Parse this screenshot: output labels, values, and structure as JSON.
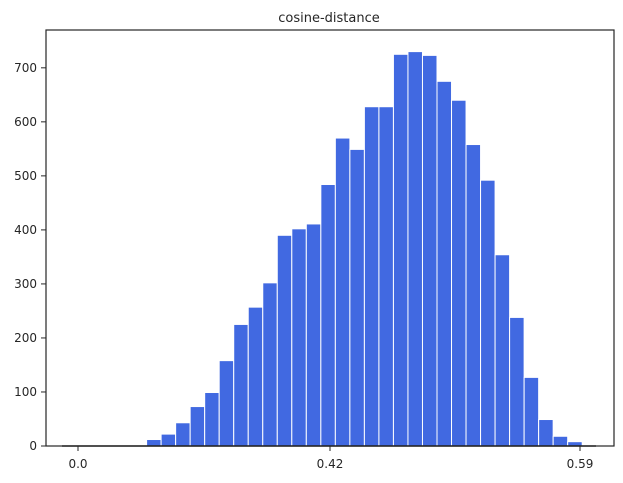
{
  "chart_data": {
    "type": "bar",
    "title": "cosine-distance",
    "xlabel": "",
    "ylabel": "",
    "xticks": [
      "0.0",
      "0.42",
      "0.59"
    ],
    "yticks": [
      "0",
      "100",
      "200",
      "300",
      "400",
      "500",
      "600",
      "700"
    ],
    "ylim": [
      0,
      770
    ],
    "grid": false,
    "bar_color": "#4169e1",
    "edge_color": "#ffffff",
    "values": [
      12,
      22,
      43,
      73,
      99,
      158,
      225,
      257,
      302,
      390,
      402,
      411,
      484,
      570,
      549,
      628,
      628,
      725,
      730,
      723,
      675,
      640,
      558,
      492,
      354,
      238,
      127,
      49,
      18,
      8
    ]
  }
}
